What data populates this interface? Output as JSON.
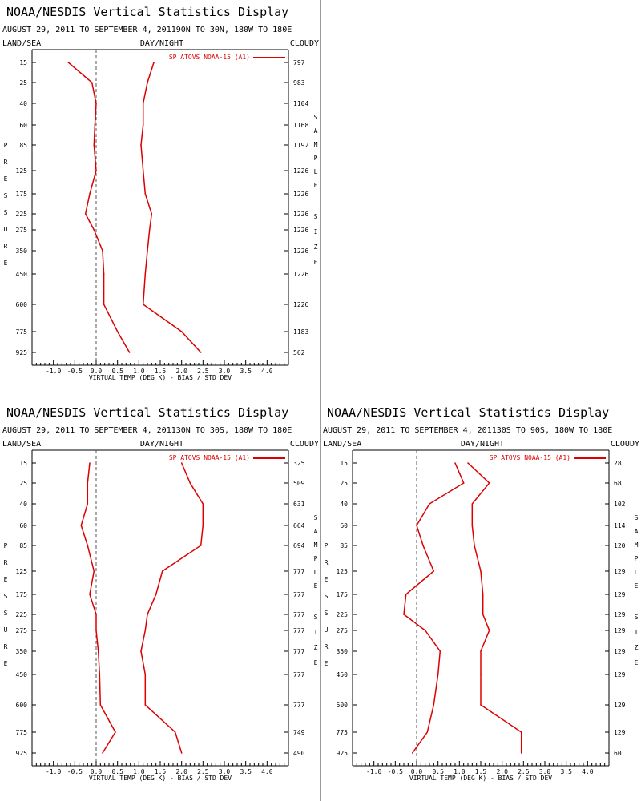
{
  "page": {
    "labels": {
      "land_sea": "LAND/SEA",
      "day_night": "DAY/NIGHT",
      "cloudy": "CLOUDY",
      "xlabel": "VIRTUAL TEMP (DEG K) - BIAS / STD DEV",
      "pressure_letters": [
        "P",
        "R",
        "E",
        "S",
        "S",
        "U",
        "R",
        "E"
      ],
      "sample_letters": [
        "S",
        "A",
        "M",
        "P",
        "L",
        "E"
      ],
      "size_letters": [
        "S",
        "I",
        "Z",
        "E"
      ]
    },
    "colors": {
      "series": "#dd0000",
      "axis": "#000000",
      "zero_line": "#555555",
      "separator": "#9a9a9a"
    }
  },
  "chart_data": [
    {
      "type": "line",
      "title": "NOAA/NESDIS Vertical Statistics Display",
      "subtitle": "AUGUST 29, 2011 TO SEPTEMBER 4, 201190N TO 30N, 180W TO 180E",
      "legend": "SP ATOVS NOAA-15 (A1)",
      "pressure_levels": [
        "15",
        "25",
        "40",
        "60",
        "85",
        "125",
        "175",
        "225",
        "275",
        "350",
        "450",
        "600",
        "775",
        "925"
      ],
      "sample_size": [
        "797",
        "983",
        "1104",
        "1168",
        "1192",
        "1226",
        "1226",
        "1226",
        "1226",
        "1226",
        "1226",
        "1226",
        "1183",
        "562"
      ],
      "x_ticks": [
        "-1.0",
        "-0.5",
        "0.0",
        "0.5",
        "1.0",
        "1.5",
        "2.0",
        "2.5",
        "3.0",
        "3.5",
        "4.0"
      ],
      "xlim": [
        -1.5,
        4.5
      ],
      "series": [
        {
          "values": [
            -0.65,
            -0.1,
            0.0,
            -0.03,
            -0.05,
            0.0,
            -0.15,
            -0.25,
            -0.05,
            0.15,
            0.18,
            0.18,
            0.5,
            0.78
          ]
        },
        {
          "values": [
            1.35,
            1.2,
            1.1,
            1.1,
            1.05,
            1.1,
            1.15,
            1.3,
            1.25,
            1.2,
            1.15,
            1.1,
            2.0,
            2.45
          ]
        }
      ]
    },
    {
      "type": "line",
      "title": "NOAA/NESDIS Vertical Statistics Display",
      "subtitle": "AUGUST 29, 2011 TO SEPTEMBER 4, 201130N TO 30S, 180W TO 180E",
      "legend": "SP ATOVS NOAA-15 (A1)",
      "pressure_levels": [
        "15",
        "25",
        "40",
        "60",
        "85",
        "125",
        "175",
        "225",
        "275",
        "350",
        "450",
        "600",
        "775",
        "925"
      ],
      "sample_size": [
        "325",
        "509",
        "631",
        "664",
        "694",
        "777",
        "777",
        "777",
        "777",
        "777",
        "777",
        "777",
        "749",
        "490"
      ],
      "x_ticks": [
        "-1.0",
        "-0.5",
        "0.0",
        "0.5",
        "1.0",
        "1.5",
        "2.0",
        "2.5",
        "3.0",
        "3.5",
        "4.0"
      ],
      "xlim": [
        -1.5,
        4.5
      ],
      "series": [
        {
          "values": [
            -0.15,
            -0.2,
            -0.2,
            -0.35,
            -0.2,
            -0.05,
            -0.15,
            0.0,
            0.0,
            0.05,
            0.08,
            0.1,
            0.45,
            0.15
          ]
        },
        {
          "values": [
            2.0,
            2.2,
            2.5,
            2.5,
            2.45,
            1.55,
            1.4,
            1.2,
            1.15,
            1.05,
            1.15,
            1.15,
            1.85,
            2.0
          ]
        }
      ]
    },
    {
      "type": "line",
      "title": "NOAA/NESDIS Vertical Statistics Display",
      "subtitle": "AUGUST 29, 2011 TO SEPTEMBER 4, 201130S TO 90S, 180W TO 180E",
      "legend": "SP ATOVS NOAA-15 (A1)",
      "pressure_levels": [
        "15",
        "25",
        "40",
        "60",
        "85",
        "125",
        "175",
        "225",
        "275",
        "350",
        "450",
        "600",
        "775",
        "925"
      ],
      "sample_size": [
        "28",
        "68",
        "102",
        "114",
        "120",
        "129",
        "129",
        "129",
        "129",
        "129",
        "129",
        "129",
        "129",
        "60"
      ],
      "x_ticks": [
        "-1.0",
        "-0.5",
        "0.0",
        "0.5",
        "1.0",
        "1.5",
        "2.0",
        "2.5",
        "3.0",
        "3.5",
        "4.0"
      ],
      "xlim": [
        -1.5,
        4.5
      ],
      "series": [
        {
          "values": [
            0.9,
            1.1,
            0.3,
            0.0,
            0.15,
            0.4,
            -0.25,
            -0.3,
            0.2,
            0.55,
            0.5,
            0.4,
            0.25,
            -0.1
          ]
        },
        {
          "values": [
            1.2,
            1.7,
            1.3,
            1.3,
            1.35,
            1.5,
            1.55,
            1.55,
            1.7,
            1.5,
            1.5,
            1.5,
            2.45,
            2.45
          ]
        }
      ]
    }
  ]
}
